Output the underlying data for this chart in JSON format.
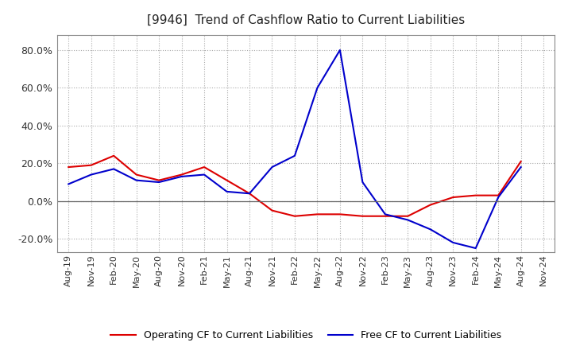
{
  "title": "[9946]  Trend of Cashflow Ratio to Current Liabilities",
  "x_labels": [
    "Aug-19",
    "Nov-19",
    "Feb-20",
    "May-20",
    "Aug-20",
    "Nov-20",
    "Feb-21",
    "May-21",
    "Aug-21",
    "Nov-21",
    "Feb-22",
    "May-22",
    "Aug-22",
    "Nov-22",
    "Feb-23",
    "May-23",
    "Aug-23",
    "Nov-23",
    "Feb-24",
    "May-24",
    "Aug-24",
    "Nov-24"
  ],
  "operating_cf": [
    0.18,
    0.19,
    0.24,
    0.14,
    0.11,
    0.14,
    0.18,
    0.11,
    0.04,
    -0.05,
    -0.08,
    -0.07,
    -0.07,
    -0.08,
    -0.08,
    -0.08,
    -0.02,
    0.02,
    0.03,
    0.03,
    0.21,
    null
  ],
  "free_cf": [
    0.09,
    0.14,
    0.17,
    0.11,
    0.1,
    0.13,
    0.14,
    0.05,
    0.04,
    0.18,
    0.24,
    0.6,
    0.8,
    0.1,
    -0.07,
    -0.1,
    -0.15,
    -0.22,
    -0.25,
    0.02,
    0.18,
    null
  ],
  "ylim": [
    -0.27,
    0.88
  ],
  "yticks": [
    -0.2,
    0.0,
    0.2,
    0.4,
    0.6,
    0.8
  ],
  "operating_color": "#dd0000",
  "free_color": "#0000cc",
  "background_color": "#ffffff",
  "plot_bg_color": "#ffffff",
  "grid_color": "#aaaaaa",
  "legend_operating": "Operating CF to Current Liabilities",
  "legend_free": "Free CF to Current Liabilities",
  "title_fontsize": 11,
  "tick_fontsize": 8,
  "legend_fontsize": 9
}
